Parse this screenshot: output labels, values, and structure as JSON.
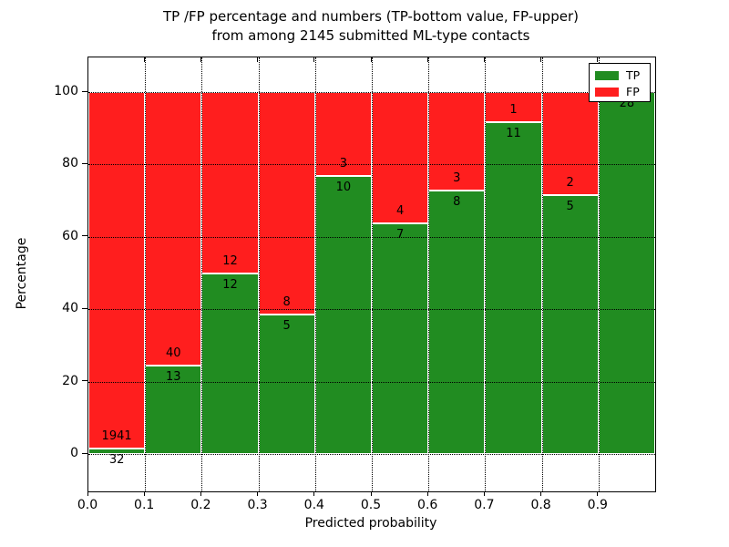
{
  "figure": {
    "title_line1": "TP /FP percentage and numbers (TP-bottom value, FP-upper)",
    "title_line2": "from among 2145 submitted ML-type contacts"
  },
  "chart_data": {
    "type": "bar",
    "subtype": "stacked-percentage",
    "title": "TP /FP percentage and numbers (TP-bottom value, FP-upper) from among 2145 submitted ML-type contacts",
    "xlabel": "Predicted probability",
    "ylabel": "Percentage",
    "xlim": [
      0.0,
      1.0
    ],
    "ylim": [
      -10.5,
      109.5
    ],
    "grid": "dotted, both axes",
    "legend_position": "upper right",
    "bin_edges": [
      0.0,
      0.1,
      0.2,
      0.3,
      0.4,
      0.5,
      0.6,
      0.7,
      0.8,
      0.9,
      1.0
    ],
    "x_tick_labels": [
      "0.0",
      "0.1",
      "0.2",
      "0.3",
      "0.4",
      "0.5",
      "0.6",
      "0.7",
      "0.8",
      "0.9"
    ],
    "y_tick_values": [
      0,
      20,
      40,
      60,
      80,
      100
    ],
    "y_tick_labels": [
      "0",
      "20",
      "40",
      "60",
      "80",
      "100"
    ],
    "series": [
      {
        "name": "TP",
        "color": "#218c21",
        "counts": [
          32,
          13,
          12,
          5,
          10,
          7,
          8,
          11,
          5,
          28
        ]
      },
      {
        "name": "FP",
        "color": "#ff1e1e",
        "counts": [
          1941,
          40,
          12,
          8,
          3,
          4,
          3,
          1,
          2,
          0
        ]
      }
    ],
    "tp_percent_of_bin": [
      1.6,
      24.5,
      50.0,
      38.5,
      76.9,
      63.6,
      72.7,
      91.7,
      71.4,
      100.0
    ],
    "total_contacts": 2145
  },
  "legend": {
    "items": [
      {
        "label": "TP",
        "color": "#218c21"
      },
      {
        "label": "FP",
        "color": "#ff1e1e"
      }
    ]
  }
}
